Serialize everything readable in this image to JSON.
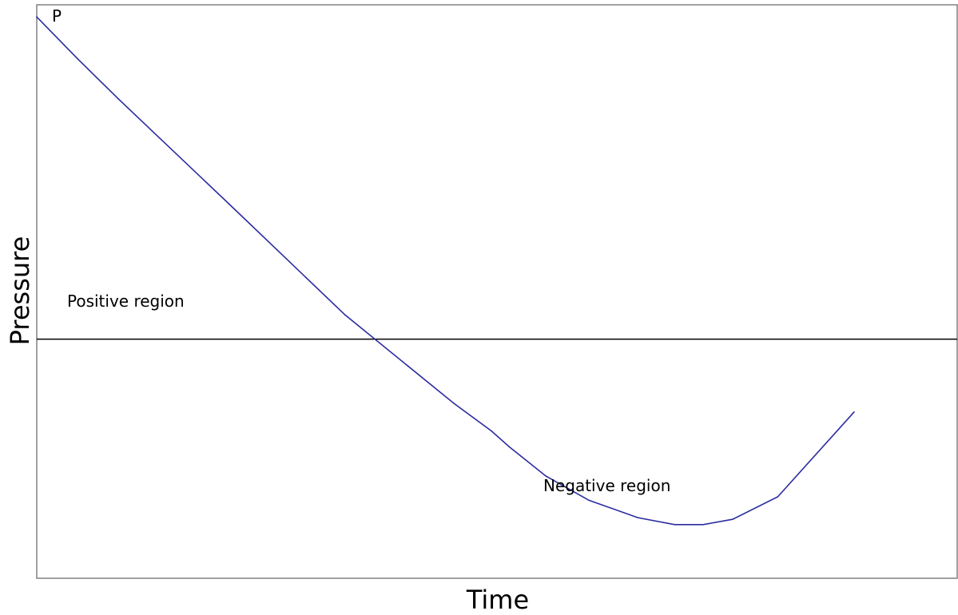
{
  "chart_data": {
    "type": "line",
    "xlabel": "Time",
    "ylabel": "Pressure",
    "grid": false,
    "xlim": [
      0,
      100
    ],
    "ylim": [
      -1.38,
      1.93
    ],
    "baseline": 0,
    "series": [
      {
        "color": "#2b2ba0",
        "x": [
          0,
          4.4,
          8.8,
          20.9,
          33.5,
          45.3,
          49.4,
          51.3,
          55.3,
          60.0,
          65.3,
          69.3,
          72.4,
          75.6,
          80.5,
          88.8
        ],
        "y": [
          1.86,
          1.62,
          1.39,
          0.78,
          0.14,
          -0.37,
          -0.53,
          -0.62,
          -0.79,
          -0.93,
          -1.03,
          -1.07,
          -1.07,
          -1.04,
          -0.91,
          -0.42
        ]
      }
    ],
    "annotations": [
      {
        "text": "P",
        "target": "series start"
      },
      {
        "text": "Positive region",
        "region": "above baseline"
      },
      {
        "text": "Negative region",
        "region": "below baseline"
      }
    ],
    "colors": {
      "frame": "#808080",
      "baseline": "#000000",
      "curve": "#2b2ba0"
    }
  }
}
